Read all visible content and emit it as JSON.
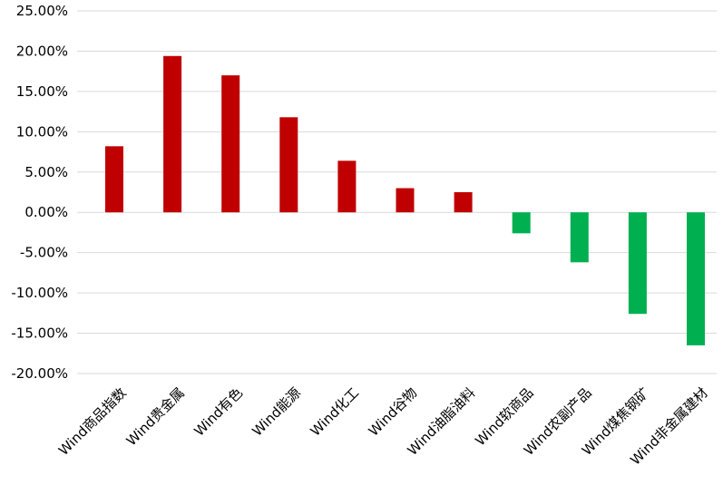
{
  "chart_data": {
    "type": "bar",
    "categories": [
      "Wind商品指数",
      "Wind贵金属",
      "Wind有色",
      "Wind能源",
      "Wind化工",
      "Wind谷物",
      "Wind油脂油料",
      "Wind软商品",
      "Wind农副产品",
      "Wind煤焦钢矿",
      "Wind非金属建材"
    ],
    "values": [
      8.2,
      19.4,
      17.0,
      11.8,
      6.4,
      3.0,
      2.5,
      -2.6,
      -6.2,
      -12.6,
      -16.5
    ],
    "unit": "%",
    "ylim": [
      -20,
      25
    ],
    "yticks": [
      "25.00%",
      "20.00%",
      "15.00%",
      "10.00%",
      "5.00%",
      "0.00%",
      "-5.00%",
      "-10.00%",
      "-15.00%",
      "-20.00%"
    ],
    "grid": true,
    "colors": {
      "positive": "#c00000",
      "negative": "#00b050",
      "grid": "#d9d9d9"
    }
  }
}
